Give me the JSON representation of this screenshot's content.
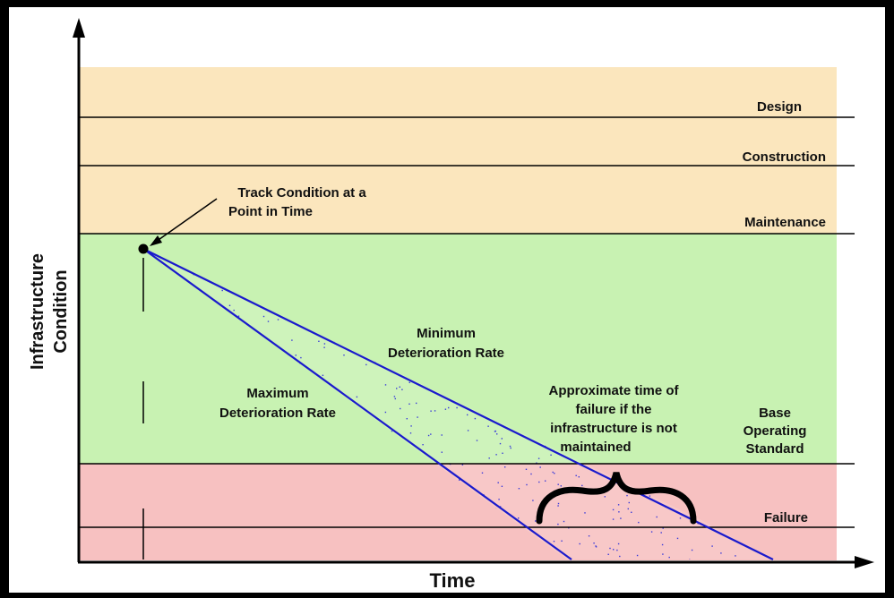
{
  "diagram": {
    "axes": {
      "y_label_line1": "Infrastructure",
      "y_label_line2": "Condition",
      "x_label": "Time"
    },
    "levels": {
      "design": "Design",
      "construction": "Construction",
      "maintenance": "Maintenance",
      "base_line1": "Base",
      "base_line2": "Operating",
      "base_line3": "Standard",
      "failure": "Failure"
    },
    "annotations": {
      "track_line1": "Track Condition at a",
      "track_line2": "Point in Time",
      "min_line1": "Minimum",
      "min_line2": "Deterioration Rate",
      "max_line1": "Maximum",
      "max_line2": "Deterioration Rate",
      "failure_line1": "Approximate time of",
      "failure_line2": "failure if the",
      "failure_line3": "infrastructure is not",
      "failure_line4": "maintained"
    },
    "colors": {
      "upper_zone": "#FBE6BD",
      "middle_zone": "#C8F2B2",
      "lower_zone": "#F7C1C1",
      "deterioration_lines": "#1A1ACC",
      "speckle": "#3B3BD9"
    }
  }
}
